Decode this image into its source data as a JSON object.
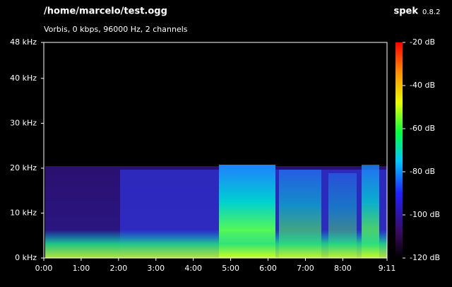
{
  "chart_data": {
    "type": "spectrogram",
    "title": "/home/marcelo/test.ogg",
    "subtitle": "Vorbis, 0 kbps, 96000 Hz, 2 channels",
    "app_name": "spek",
    "app_version": "0.8.2",
    "xlim": [
      0,
      551
    ],
    "xticks": [
      {
        "value": 0,
        "label": "0:00"
      },
      {
        "value": 60,
        "label": "1:00"
      },
      {
        "value": 120,
        "label": "2:00"
      },
      {
        "value": 180,
        "label": "3:00"
      },
      {
        "value": 240,
        "label": "4:00"
      },
      {
        "value": 300,
        "label": "5:00"
      },
      {
        "value": 360,
        "label": "6:00"
      },
      {
        "value": 420,
        "label": "7:00"
      },
      {
        "value": 480,
        "label": "8:00"
      },
      {
        "value": 551,
        "label": "9:11"
      }
    ],
    "ylim": [
      0,
      48
    ],
    "yticks": [
      {
        "value": 0,
        "label": "0 kHz"
      },
      {
        "value": 10,
        "label": "10 kHz"
      },
      {
        "value": 20,
        "label": "20 kHz"
      },
      {
        "value": 30,
        "label": "30 kHz"
      },
      {
        "value": 40,
        "label": "40 kHz"
      },
      {
        "value": 48,
        "label": "48 kHz"
      }
    ],
    "clim": [
      -120,
      -20
    ],
    "cticks": [
      {
        "value": -20,
        "label": "-20 dB"
      },
      {
        "value": -40,
        "label": "-40 dB"
      },
      {
        "value": -60,
        "label": "-60 dB"
      },
      {
        "value": -80,
        "label": "-80 dB"
      },
      {
        "value": -100,
        "label": "-100 dB"
      },
      {
        "value": -120,
        "label": "-120 dB"
      }
    ]
  }
}
